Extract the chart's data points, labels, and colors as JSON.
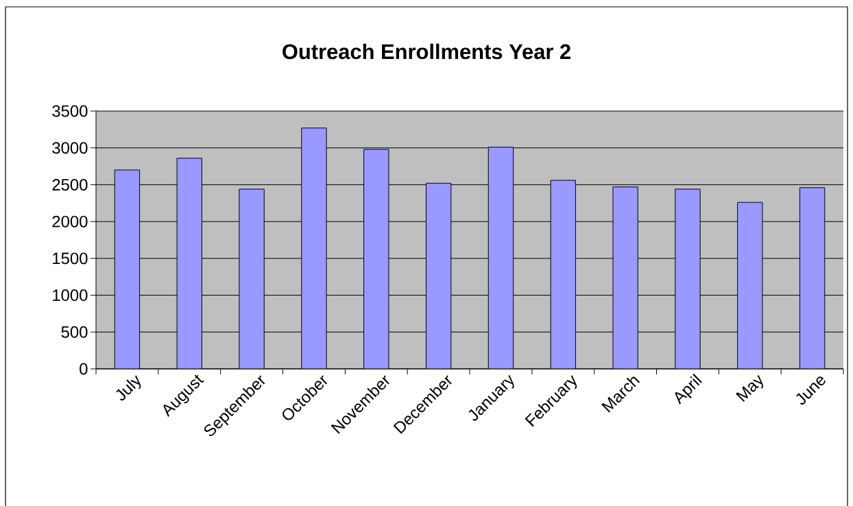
{
  "chart_data": {
    "type": "bar",
    "title": "Outreach Enrollments Year 2",
    "categories": [
      "July",
      "August",
      "September",
      "October",
      "November",
      "December",
      "January",
      "February",
      "March",
      "April",
      "May",
      "June"
    ],
    "values": [
      2700,
      2860,
      2440,
      3270,
      2980,
      2520,
      3010,
      2560,
      2470,
      2440,
      2260,
      2460
    ],
    "color": "#9999ff",
    "ylim": [
      0,
      3500
    ],
    "yticks": [
      0,
      500,
      1000,
      1500,
      2000,
      2500,
      3000,
      3500
    ],
    "grid": "y"
  }
}
